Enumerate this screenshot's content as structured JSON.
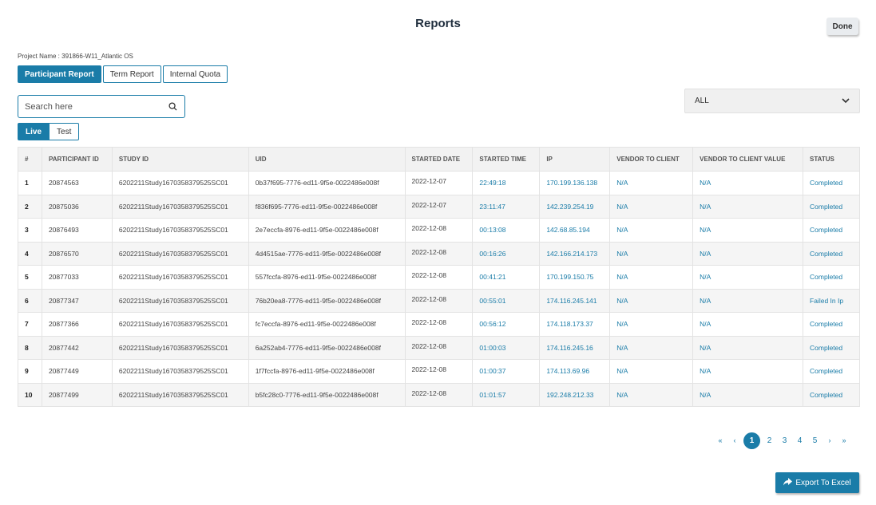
{
  "header": {
    "title": "Reports",
    "done_label": "Done"
  },
  "project": {
    "label": "Project Name : 391866-W11_Atlantic OS"
  },
  "report_tabs": [
    {
      "label": "Participant Report",
      "active": true
    },
    {
      "label": "Term Report",
      "active": false
    },
    {
      "label": "Internal Quota",
      "active": false
    }
  ],
  "search": {
    "placeholder": "Search here",
    "value": ""
  },
  "filter": {
    "selected": "ALL"
  },
  "env_tabs": [
    {
      "label": "Live",
      "active": true
    },
    {
      "label": "Test",
      "active": false
    }
  ],
  "table": {
    "columns": [
      "#",
      "PARTICIPANT ID",
      "STUDY ID",
      "UID",
      "STARTED DATE",
      "STARTED TIME",
      "IP",
      "VENDOR TO CLIENT",
      "VENDOR TO CLIENT VALUE",
      "STATUS"
    ],
    "rows": [
      [
        "1",
        "20874563",
        "6202211Study1670358379525SC01",
        "0b37f695-7776-ed11-9f5e-0022486e008f",
        "2022-12-07",
        "22:49:18",
        "170.199.136.138",
        "N/A",
        "N/A",
        "Completed"
      ],
      [
        "2",
        "20875036",
        "6202211Study1670358379525SC01",
        "f836f695-7776-ed11-9f5e-0022486e008f",
        "2022-12-07",
        "23:11:47",
        "142.239.254.19",
        "N/A",
        "N/A",
        "Completed"
      ],
      [
        "3",
        "20876493",
        "6202211Study1670358379525SC01",
        "2e7eccfa-8976-ed11-9f5e-0022486e008f",
        "2022-12-08",
        "00:13:08",
        "142.68.85.194",
        "N/A",
        "N/A",
        "Completed"
      ],
      [
        "4",
        "20876570",
        "6202211Study1670358379525SC01",
        "4d4515ae-7776-ed11-9f5e-0022486e008f",
        "2022-12-08",
        "00:16:26",
        "142.166.214.173",
        "N/A",
        "N/A",
        "Completed"
      ],
      [
        "5",
        "20877033",
        "6202211Study1670358379525SC01",
        "557fccfa-8976-ed11-9f5e-0022486e008f",
        "2022-12-08",
        "00:41:21",
        "170.199.150.75",
        "N/A",
        "N/A",
        "Completed"
      ],
      [
        "6",
        "20877347",
        "6202211Study1670358379525SC01",
        "76b20ea8-7776-ed11-9f5e-0022486e008f",
        "2022-12-08",
        "00:55:01",
        "174.116.245.141",
        "N/A",
        "N/A",
        "Failed In Ip"
      ],
      [
        "7",
        "20877366",
        "6202211Study1670358379525SC01",
        "fc7eccfa-8976-ed11-9f5e-0022486e008f",
        "2022-12-08",
        "00:56:12",
        "174.118.173.37",
        "N/A",
        "N/A",
        "Completed"
      ],
      [
        "8",
        "20877442",
        "6202211Study1670358379525SC01",
        "6a252ab4-7776-ed11-9f5e-0022486e008f",
        "2022-12-08",
        "01:00:03",
        "174.116.245.16",
        "N/A",
        "N/A",
        "Completed"
      ],
      [
        "9",
        "20877449",
        "6202211Study1670358379525SC01",
        "1f7fccfa-8976-ed11-9f5e-0022486e008f",
        "2022-12-08",
        "01:00:37",
        "174.113.69.96",
        "N/A",
        "N/A",
        "Completed"
      ],
      [
        "10",
        "20877499",
        "6202211Study1670358379525SC01",
        "b5fc28c0-7776-ed11-9f5e-0022486e008f",
        "2022-12-08",
        "01:01:57",
        "192.248.212.33",
        "N/A",
        "N/A",
        "Completed"
      ]
    ]
  },
  "pagination": {
    "first": "«",
    "prev": "‹",
    "pages": [
      "1",
      "2",
      "3",
      "4",
      "5"
    ],
    "current": "1",
    "next": "›",
    "last": "»"
  },
  "export": {
    "label": "Export To Excel"
  },
  "colors": {
    "accent": "#1a7ca8",
    "header_bg": "#f2f2f2",
    "stripe": "#f5f5f5"
  },
  "icons": {
    "search": "search-icon",
    "dropdown": "chevron-down-icon",
    "export": "share-arrow-icon"
  }
}
